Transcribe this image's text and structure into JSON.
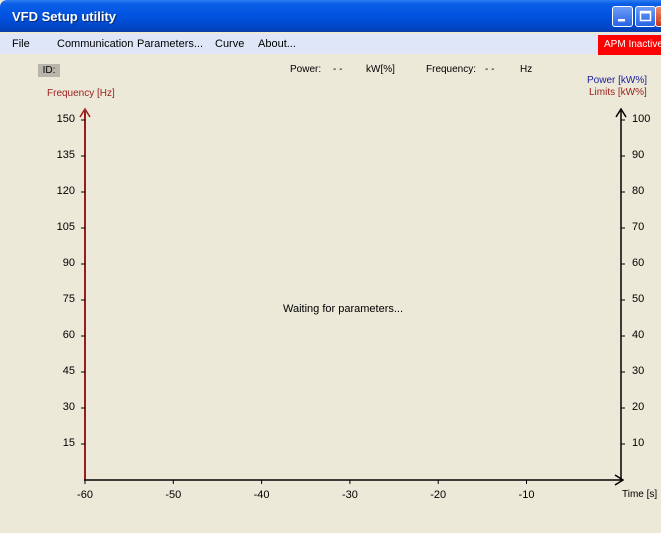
{
  "window": {
    "title": "VFD Setup utility"
  },
  "menu": {
    "items": [
      "File",
      "Communication",
      "Parameters...",
      "Curve",
      "About..."
    ]
  },
  "status": {
    "apm_label": "APM Inactive",
    "id_label": "ID:",
    "power_label": "Power:",
    "power_value": "- -",
    "power_unit": "kW[%]",
    "frequency_label": "Frequency:",
    "frequency_value": "- -",
    "frequency_unit": "Hz"
  },
  "axes": {
    "left_title": "Frequency [Hz]",
    "right_title_power": "Power [kW%]",
    "right_title_limits": "Limits [kW%]",
    "x_title": "Time [s]"
  },
  "message": "Waiting for parameters...",
  "colors": {
    "left_axis": "#9b1c1c",
    "power": "#1c1c9b",
    "limits": "#9b1c1c",
    "apm_bg": "#ff0000"
  },
  "chart_data": {
    "type": "line",
    "x_ticks": [
      -60,
      -50,
      -40,
      -30,
      -20,
      -10
    ],
    "xlim": [
      -60,
      0
    ],
    "y_left_ticks": [
      15,
      30,
      45,
      60,
      75,
      90,
      105,
      120,
      135,
      150
    ],
    "y_left_lim": [
      0,
      150
    ],
    "y_right_ticks": [
      10,
      20,
      30,
      40,
      50,
      60,
      70,
      80,
      90,
      100
    ],
    "y_right_lim": [
      0,
      100
    ],
    "series": []
  }
}
